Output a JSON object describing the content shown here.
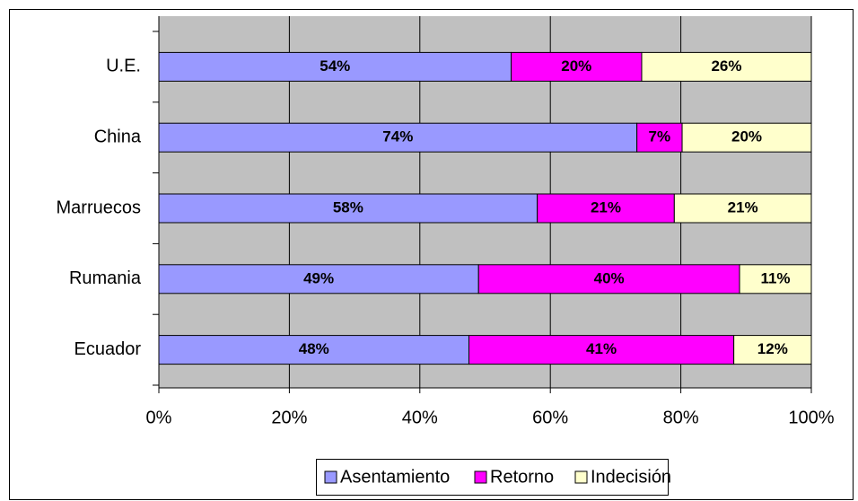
{
  "chart_data": {
    "type": "bar",
    "orientation": "horizontal",
    "stacking": "percent",
    "categories": [
      "U.E.",
      "China",
      "Marruecos",
      "Rumania",
      "Ecuador"
    ],
    "series": [
      {
        "name": "Asentamiento",
        "color": "#9999ff",
        "values": [
          54,
          74,
          58,
          49,
          48
        ],
        "value_labels": [
          "54%",
          "74%",
          "58%",
          "49%",
          "48%"
        ]
      },
      {
        "name": "Retorno",
        "color": "#ff00ff",
        "values": [
          20,
          7,
          21,
          40,
          41
        ],
        "value_labels": [
          "20%",
          "7%",
          "21%",
          "40%",
          "41%"
        ]
      },
      {
        "name": "Indecisión",
        "color": "#ffffcc",
        "values": [
          26,
          20,
          21,
          11,
          12
        ],
        "value_labels": [
          "26%",
          "20%",
          "21%",
          "11%",
          "12%"
        ]
      }
    ],
    "xlim": [
      0,
      100
    ],
    "xticks": [
      {
        "value": 0,
        "label": "0%"
      },
      {
        "value": 20,
        "label": "20%"
      },
      {
        "value": 40,
        "label": "40%"
      },
      {
        "value": 60,
        "label": "60%"
      },
      {
        "value": 80,
        "label": "80%"
      },
      {
        "value": 100,
        "label": "100%"
      }
    ],
    "grid": true,
    "legend": "bottom"
  }
}
